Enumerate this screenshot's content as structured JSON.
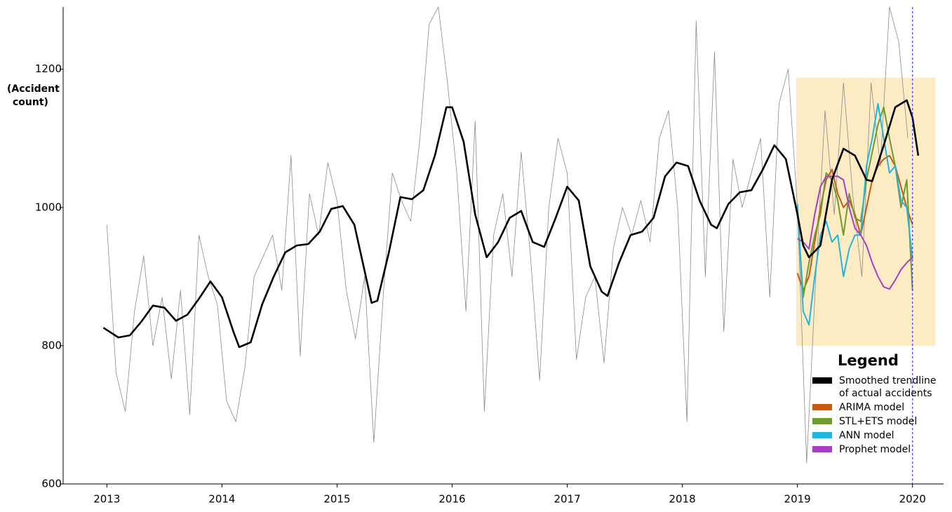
{
  "chart_data": {
    "type": "line",
    "y_label": [
      "(Accident",
      "count)"
    ],
    "xlim": [
      2012.62,
      2020.27
    ],
    "xticks": [
      2013,
      2014,
      2015,
      2016,
      2017,
      2018,
      2019,
      2020
    ],
    "ylim": [
      600,
      1290
    ],
    "yticks": [
      600,
      800,
      1000,
      1200
    ],
    "highlight": {
      "x": [
        2018.99,
        2020.2
      ],
      "y": [
        800,
        1188
      ],
      "color": "#fdebc4"
    },
    "vline": {
      "x": 2020,
      "color": "#3a3ad0"
    },
    "legend_title": "Legend",
    "series": [
      {
        "color": "#8a8a8a",
        "x": [
          2013,
          2013.08,
          2013.16,
          2013.24,
          2013.32,
          2013.4,
          2013.48,
          2013.56,
          2013.64,
          2013.72,
          2013.8,
          2013.88,
          2013.96,
          2014.04,
          2014.12,
          2014.2,
          2014.28,
          2014.36,
          2014.44,
          2014.52,
          2014.6,
          2014.68,
          2014.76,
          2014.84,
          2014.92,
          2015,
          2015.08,
          2015.16,
          2015.24,
          2015.32,
          2015.4,
          2015.48,
          2015.56,
          2015.64,
          2015.72,
          2015.8,
          2015.88,
          2015.96,
          2016.04,
          2016.12,
          2016.2,
          2016.28,
          2016.36,
          2016.44,
          2016.52,
          2016.6,
          2016.68,
          2016.76,
          2016.84,
          2016.92,
          2017,
          2017.08,
          2017.16,
          2017.24,
          2017.32,
          2017.4,
          2017.48,
          2017.56,
          2017.64,
          2017.72,
          2017.8,
          2017.88,
          2017.96,
          2018.04,
          2018.12,
          2018.2,
          2018.28,
          2018.36,
          2018.44,
          2018.52,
          2018.6,
          2018.68,
          2018.76,
          2018.84,
          2018.92,
          2019,
          2019.08,
          2019.16,
          2019.24,
          2019.32,
          2019.4,
          2019.48,
          2019.56,
          2019.64,
          2019.72,
          2019.8,
          2019.88,
          2019.96
        ],
        "values": [
          975,
          760,
          705,
          850,
          930,
          800,
          870,
          752,
          880,
          700,
          960,
          900,
          860,
          720,
          690,
          770,
          900,
          930,
          960,
          880,
          1075,
          785,
          1020,
          960,
          1065,
          1010,
          880,
          810,
          900,
          660,
          870,
          1050,
          1010,
          980,
          1100,
          1265,
          1290,
          1180,
          1050,
          850,
          1125,
          705,
          960,
          1020,
          900,
          1080,
          930,
          750,
          1000,
          1100,
          1050,
          780,
          870,
          900,
          775,
          940,
          1000,
          960,
          1010,
          950,
          1100,
          1140,
          1000,
          690,
          1270,
          900,
          1225,
          820,
          1070,
          1000,
          1050,
          1100,
          870,
          1150,
          1200,
          1000,
          630,
          900,
          1140,
          990,
          1180,
          1020,
          900,
          1180,
          1060,
          1290,
          1240,
          1100
        ]
      },
      {
        "name": "Smoothed trendline of actual accidents",
        "color": "#000000",
        "x": [
          2012.97,
          2013.1,
          2013.2,
          2013.3,
          2013.4,
          2013.5,
          2013.6,
          2013.7,
          2013.8,
          2013.9,
          2014.0,
          2014.1,
          2014.15,
          2014.25,
          2014.35,
          2014.45,
          2014.55,
          2014.65,
          2014.75,
          2014.85,
          2014.95,
          2015.05,
          2015.15,
          2015.25,
          2015.3,
          2015.35,
          2015.45,
          2015.55,
          2015.65,
          2015.75,
          2015.85,
          2015.95,
          2016.0,
          2016.1,
          2016.2,
          2016.3,
          2016.4,
          2016.5,
          2016.6,
          2016.7,
          2016.8,
          2016.9,
          2017.0,
          2017.1,
          2017.2,
          2017.3,
          2017.35,
          2017.45,
          2017.55,
          2017.65,
          2017.75,
          2017.85,
          2017.95,
          2018.05,
          2018.15,
          2018.25,
          2018.3,
          2018.4,
          2018.5,
          2018.6,
          2018.7,
          2018.8,
          2018.9,
          2019.0,
          2019.05,
          2019.1,
          2019.2,
          2019.3,
          2019.4,
          2019.5,
          2019.6,
          2019.65,
          2019.75,
          2019.85,
          2019.95,
          2020.0,
          2020.05
        ],
        "values": [
          826,
          812,
          815,
          835,
          858,
          855,
          836,
          845,
          868,
          893,
          870,
          820,
          798,
          805,
          860,
          900,
          935,
          945,
          947,
          965,
          998,
          1002,
          975,
          900,
          862,
          865,
          935,
          1015,
          1012,
          1025,
          1075,
          1145,
          1145,
          1095,
          990,
          928,
          950,
          985,
          995,
          950,
          943,
          985,
          1030,
          1010,
          915,
          878,
          872,
          920,
          960,
          965,
          985,
          1045,
          1065,
          1060,
          1010,
          975,
          970,
          1005,
          1022,
          1025,
          1055,
          1090,
          1070,
          990,
          945,
          928,
          945,
          1040,
          1085,
          1075,
          1040,
          1038,
          1090,
          1145,
          1155,
          1130,
          1075
        ]
      },
      {
        "name": "ARIMA model",
        "color": "#c55a11",
        "x": [
          2019,
          2019.05,
          2019.1,
          2019.15,
          2019.2,
          2019.25,
          2019.3,
          2019.35,
          2019.4,
          2019.45,
          2019.5,
          2019.55,
          2019.6,
          2019.65,
          2019.7,
          2019.75,
          2019.8,
          2019.85,
          2019.9,
          2019.95,
          2020
        ],
        "values": [
          905,
          880,
          900,
          950,
          1000,
          1040,
          1055,
          1020,
          1000,
          1010,
          990,
          960,
          1000,
          1040,
          1060,
          1070,
          1075,
          1060,
          1030,
          1000,
          975
        ]
      },
      {
        "name": "STL+ETS model",
        "color": "#6f9a2e",
        "x": [
          2019,
          2019.05,
          2019.1,
          2019.15,
          2019.2,
          2019.25,
          2019.3,
          2019.35,
          2019.4,
          2019.45,
          2019.5,
          2019.55,
          2019.6,
          2019.65,
          2019.7,
          2019.75,
          2019.8,
          2019.85,
          2019.9,
          2019.95,
          2020
        ],
        "values": [
          995,
          870,
          920,
          960,
          990,
          1050,
          1040,
          1010,
          960,
          1020,
          985,
          980,
          1040,
          1080,
          1120,
          1145,
          1100,
          1060,
          1000,
          1040,
          880
        ]
      },
      {
        "name": "ANN model",
        "color": "#1fb6e0",
        "x": [
          2019,
          2019.05,
          2019.1,
          2019.15,
          2019.2,
          2019.25,
          2019.3,
          2019.35,
          2019.4,
          2019.45,
          2019.5,
          2019.55,
          2019.6,
          2019.65,
          2019.7,
          2019.75,
          2019.8,
          2019.85,
          2019.9,
          2019.95,
          2020
        ],
        "values": [
          1005,
          850,
          830,
          900,
          960,
          980,
          950,
          960,
          900,
          940,
          960,
          960,
          1060,
          1100,
          1150,
          1100,
          1050,
          1060,
          1010,
          1000,
          925
        ]
      },
      {
        "name": "Prophet model",
        "color": "#a63fc4",
        "x": [
          2019,
          2019.05,
          2019.1,
          2019.15,
          2019.2,
          2019.25,
          2019.3,
          2019.35,
          2019.4,
          2019.45,
          2019.5,
          2019.55,
          2019.6,
          2019.65,
          2019.7,
          2019.75,
          2019.8,
          2019.85,
          2019.9,
          2019.95,
          2020
        ],
        "values": [
          955,
          950,
          940,
          990,
          1030,
          1045,
          1045,
          1045,
          1040,
          1000,
          970,
          960,
          945,
          920,
          900,
          885,
          882,
          895,
          910,
          920,
          928
        ]
      }
    ]
  }
}
